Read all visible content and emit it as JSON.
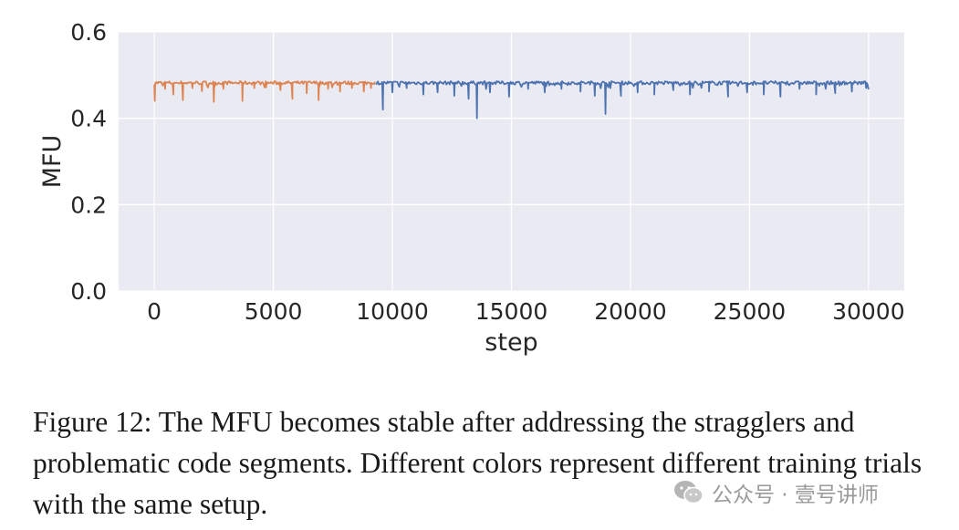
{
  "chart_data": {
    "type": "line",
    "xlabel": "step",
    "ylabel": "MFU",
    "xlim": [
      -1500,
      31500
    ],
    "ylim": [
      0.0,
      0.6
    ],
    "xticks": [
      0,
      5000,
      10000,
      15000,
      20000,
      25000,
      30000
    ],
    "xtick_labels": [
      "0",
      "5000",
      "10000",
      "15000",
      "20000",
      "25000",
      "30000"
    ],
    "yticks": [
      0.0,
      0.2,
      0.4,
      0.6
    ],
    "ytick_labels": [
      "0.0",
      "0.2",
      "0.4",
      "0.6"
    ],
    "grid": true,
    "background": "#eaeaf2",
    "series": [
      {
        "color": "#dd8452",
        "baseline": 0.482,
        "x_range": [
          0,
          9300
        ],
        "dips": [
          {
            "x": 20,
            "y": 0.44
          },
          {
            "x": 450,
            "y": 0.468
          },
          {
            "x": 800,
            "y": 0.455
          },
          {
            "x": 1200,
            "y": 0.442
          },
          {
            "x": 1600,
            "y": 0.47
          },
          {
            "x": 2000,
            "y": 0.463
          },
          {
            "x": 2500,
            "y": 0.438
          },
          {
            "x": 2900,
            "y": 0.468
          },
          {
            "x": 3700,
            "y": 0.44
          },
          {
            "x": 4200,
            "y": 0.47
          },
          {
            "x": 4700,
            "y": 0.472
          },
          {
            "x": 5300,
            "y": 0.465
          },
          {
            "x": 5800,
            "y": 0.445
          },
          {
            "x": 6400,
            "y": 0.458
          },
          {
            "x": 6900,
            "y": 0.442
          },
          {
            "x": 7300,
            "y": 0.468
          },
          {
            "x": 7800,
            "y": 0.462
          },
          {
            "x": 8300,
            "y": 0.47
          },
          {
            "x": 8800,
            "y": 0.462
          },
          {
            "x": 9100,
            "y": 0.47
          }
        ]
      },
      {
        "color": "#4c72b0",
        "baseline": 0.482,
        "x_range": [
          9300,
          30000
        ],
        "dips": [
          {
            "x": 9600,
            "y": 0.42
          },
          {
            "x": 10000,
            "y": 0.46
          },
          {
            "x": 10600,
            "y": 0.47
          },
          {
            "x": 11300,
            "y": 0.455
          },
          {
            "x": 11900,
            "y": 0.46
          },
          {
            "x": 12600,
            "y": 0.452
          },
          {
            "x": 13200,
            "y": 0.445
          },
          {
            "x": 13550,
            "y": 0.4
          },
          {
            "x": 14100,
            "y": 0.46
          },
          {
            "x": 14900,
            "y": 0.45
          },
          {
            "x": 15700,
            "y": 0.468
          },
          {
            "x": 16400,
            "y": 0.46
          },
          {
            "x": 17100,
            "y": 0.468
          },
          {
            "x": 17900,
            "y": 0.462
          },
          {
            "x": 18500,
            "y": 0.452
          },
          {
            "x": 18950,
            "y": 0.41
          },
          {
            "x": 19600,
            "y": 0.452
          },
          {
            "x": 20300,
            "y": 0.46
          },
          {
            "x": 21000,
            "y": 0.455
          },
          {
            "x": 21800,
            "y": 0.465
          },
          {
            "x": 22500,
            "y": 0.455
          },
          {
            "x": 23300,
            "y": 0.462
          },
          {
            "x": 24100,
            "y": 0.45
          },
          {
            "x": 24900,
            "y": 0.46
          },
          {
            "x": 25600,
            "y": 0.455
          },
          {
            "x": 26300,
            "y": 0.45
          },
          {
            "x": 27100,
            "y": 0.468
          },
          {
            "x": 27800,
            "y": 0.455
          },
          {
            "x": 28600,
            "y": 0.458
          },
          {
            "x": 29300,
            "y": 0.462
          },
          {
            "x": 29900,
            "y": 0.47
          }
        ]
      }
    ]
  },
  "caption": "Figure 12: The MFU becomes stable after addressing the stragglers and problematic code segments. Different colors represent different training trials with the same setup.",
  "watermark": {
    "text": "公众号 · 壹号讲师",
    "icon": "wechat-icon"
  }
}
